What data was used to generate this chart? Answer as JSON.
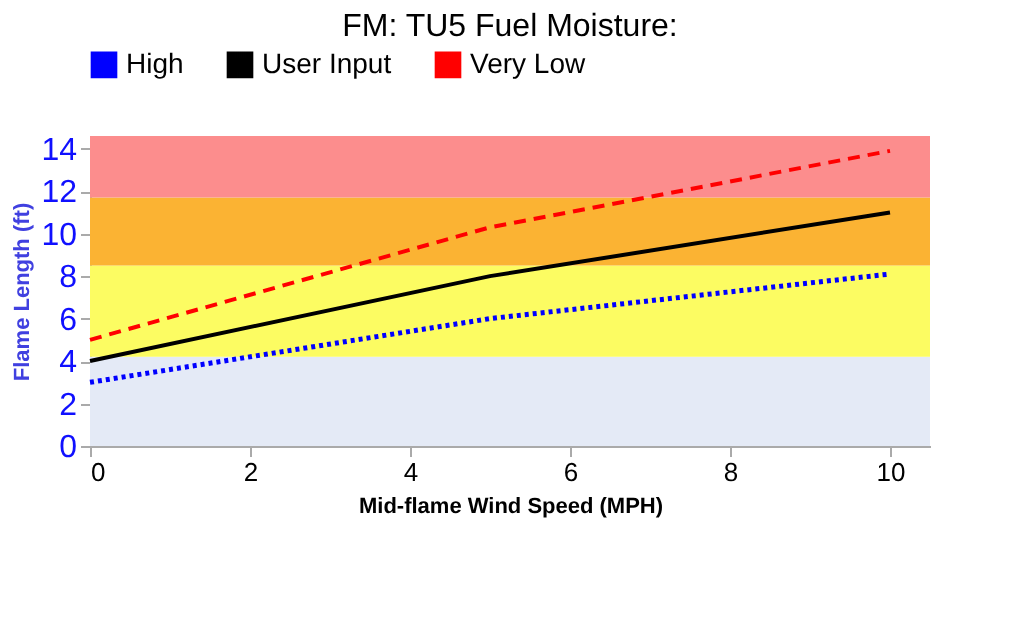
{
  "chart_data": {
    "type": "line",
    "title": "FM: TU5 Fuel Moisture:",
    "xlabel": "Mid-flame Wind Speed (MPH)",
    "ylabel": "Flame Length (ft)",
    "x": [
      0,
      5,
      10
    ],
    "series": [
      {
        "name": "High",
        "color": "#0000ff",
        "line_style": "dotted",
        "values": [
          3.0,
          6.0,
          8.1
        ]
      },
      {
        "name": "User Input",
        "color": "#000000",
        "line_style": "solid",
        "values": [
          4.0,
          8.0,
          11.0
        ]
      },
      {
        "name": "Very Low",
        "color": "#ff0000",
        "line_style": "dashed",
        "values": [
          5.0,
          10.3,
          13.9
        ]
      }
    ],
    "xlim": [
      0,
      10.5
    ],
    "xticks": [
      0,
      2,
      4,
      6,
      8,
      10
    ],
    "ylim": [
      0,
      14.6
    ],
    "yticks": [
      0,
      2,
      4,
      6,
      8,
      10,
      12,
      14
    ],
    "bands": [
      {
        "axis": "y",
        "from": 0,
        "to": 4.2,
        "color": "#e4eaf6"
      },
      {
        "axis": "y",
        "from": 4.2,
        "to": 8.5,
        "color": "#fcfc62"
      },
      {
        "axis": "y",
        "from": 8.5,
        "to": 11.7,
        "color": "#fbb333"
      },
      {
        "axis": "y",
        "from": 11.7,
        "to": 14.6,
        "color": "#fc8d8d"
      }
    ],
    "legend": "top",
    "grid": false,
    "marker": "none"
  }
}
